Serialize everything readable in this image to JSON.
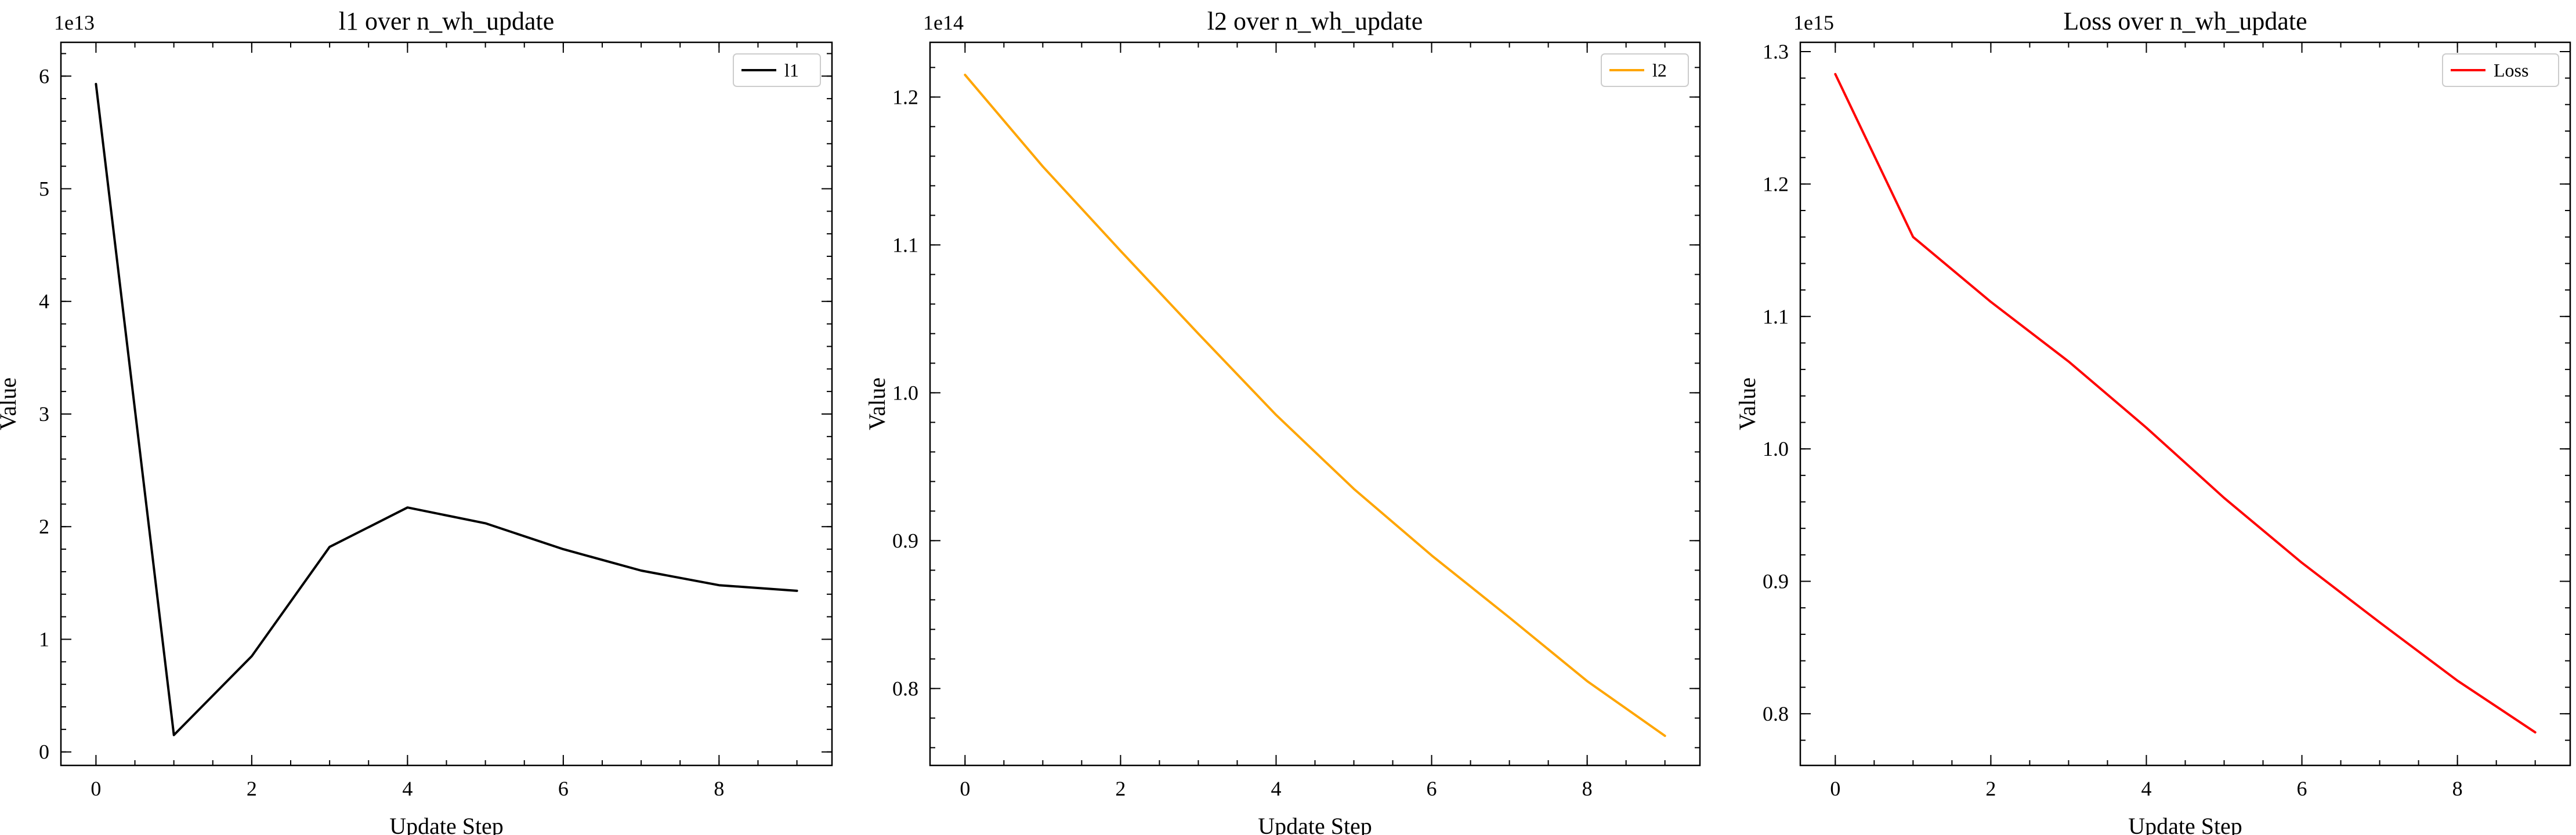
{
  "chart_data": [
    {
      "type": "line",
      "title": "l1 over n_wh_update",
      "xlabel": "Update Step",
      "ylabel": "Value",
      "offset_text": "1e13",
      "x": [
        0,
        1,
        2,
        3,
        4,
        5,
        6,
        7,
        8,
        9
      ],
      "xlim": [
        -0.45,
        9.45
      ],
      "ylim": [
        -0.12,
        6.3
      ],
      "xticks": [
        0,
        2,
        4,
        6,
        8
      ],
      "yticks": [
        0,
        1,
        2,
        3,
        4,
        5,
        6
      ],
      "xtick_labels": [
        "0",
        "2",
        "4",
        "6",
        "8"
      ],
      "ytick_labels": [
        "0",
        "1",
        "2",
        "3",
        "4",
        "5",
        "6"
      ],
      "yminor_step": 0.2,
      "xminor_step": 0.5,
      "legend_position": "top-right",
      "grid": false,
      "series": [
        {
          "name": "l1",
          "color": "#000000",
          "values": [
            5.93,
            0.15,
            0.85,
            1.82,
            2.17,
            2.03,
            1.8,
            1.61,
            1.48,
            1.43
          ]
        }
      ]
    },
    {
      "type": "line",
      "title": "l2 over n_wh_update",
      "xlabel": "Update Step",
      "ylabel": "Value",
      "offset_text": "1e14",
      "x": [
        0,
        1,
        2,
        3,
        4,
        5,
        6,
        7,
        8,
        9
      ],
      "xlim": [
        -0.45,
        9.45
      ],
      "ylim": [
        0.748,
        1.237
      ],
      "xticks": [
        0,
        2,
        4,
        6,
        8
      ],
      "yticks": [
        0.8,
        0.9,
        1.0,
        1.1,
        1.2
      ],
      "xtick_labels": [
        "0",
        "2",
        "4",
        "6",
        "8"
      ],
      "ytick_labels": [
        "0.8",
        "0.9",
        "1.0",
        "1.1",
        "1.2"
      ],
      "yminor_step": 0.02,
      "xminor_step": 0.5,
      "legend_position": "top-right",
      "grid": false,
      "series": [
        {
          "name": "l2",
          "color": "#ffa500",
          "values": [
            1.215,
            1.153,
            1.096,
            1.04,
            0.985,
            0.935,
            0.89,
            0.848,
            0.805,
            0.768
          ]
        }
      ]
    },
    {
      "type": "line",
      "title": "Loss over n_wh_update",
      "xlabel": "Update Step",
      "ylabel": "Value",
      "offset_text": "1e15",
      "x": [
        0,
        1,
        2,
        3,
        4,
        5,
        6,
        7,
        8,
        9
      ],
      "xlim": [
        -0.45,
        9.45
      ],
      "ylim": [
        0.761,
        1.307
      ],
      "xticks": [
        0,
        2,
        4,
        6,
        8
      ],
      "yticks": [
        0.8,
        0.9,
        1.0,
        1.1,
        1.2,
        1.3
      ],
      "xtick_labels": [
        "0",
        "2",
        "4",
        "6",
        "8"
      ],
      "ytick_labels": [
        "0.8",
        "0.9",
        "1.0",
        "1.1",
        "1.2",
        "1.3"
      ],
      "yminor_step": 0.02,
      "xminor_step": 0.5,
      "legend_position": "top-right",
      "grid": false,
      "series": [
        {
          "name": "Loss",
          "color": "#ff0000",
          "values": [
            1.283,
            1.16,
            1.111,
            1.066,
            1.016,
            0.963,
            0.914,
            0.869,
            0.825,
            0.786
          ]
        }
      ]
    }
  ]
}
